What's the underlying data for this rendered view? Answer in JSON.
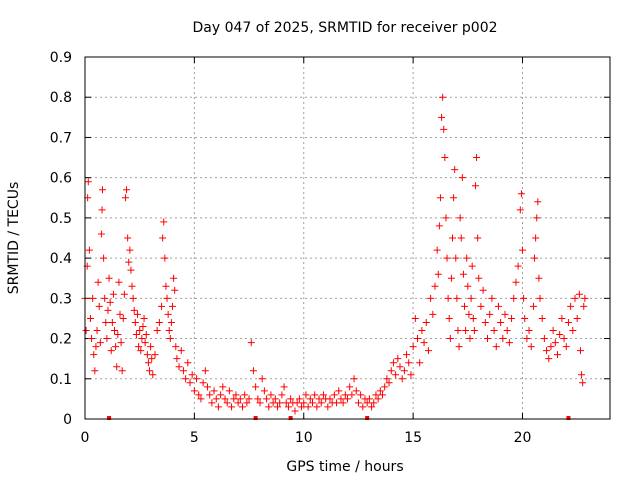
{
  "chart_data": {
    "type": "scatter",
    "title": "Day 047 of 2025, SRMTID for receiver p002",
    "xlabel": "GPS time / hours",
    "ylabel": "SRMTID / TECUs",
    "xlim": [
      0,
      24
    ],
    "ylim": [
      0,
      0.9
    ],
    "xticks": [
      0,
      5,
      10,
      15,
      20
    ],
    "xtick_labels": [
      "0",
      "5",
      "10",
      "15",
      "20"
    ],
    "yticks": [
      0,
      0.1,
      0.2,
      0.3,
      0.4,
      0.5,
      0.6,
      0.7,
      0.8,
      0.9
    ],
    "ytick_labels": [
      "0",
      "0.1",
      "0.2",
      "0.3",
      "0.4",
      "0.5",
      "0.6",
      "0.7",
      "0.8",
      "0.9"
    ],
    "grid": true,
    "marker": "plus",
    "color": "#ff0000",
    "series": [
      {
        "name": "SRMTID",
        "points": [
          [
            0.0,
            0.3
          ],
          [
            0.05,
            0.22
          ],
          [
            0.1,
            0.38
          ],
          [
            0.12,
            0.55
          ],
          [
            0.15,
            0.59
          ],
          [
            0.2,
            0.42
          ],
          [
            0.25,
            0.25
          ],
          [
            0.3,
            0.2
          ],
          [
            0.35,
            0.3
          ],
          [
            0.4,
            0.16
          ],
          [
            0.45,
            0.12
          ],
          [
            0.5,
            0.18
          ],
          [
            0.55,
            0.22
          ],
          [
            0.6,
            0.34
          ],
          [
            0.65,
            0.28
          ],
          [
            0.7,
            0.19
          ],
          [
            0.75,
            0.46
          ],
          [
            0.78,
            0.52
          ],
          [
            0.8,
            0.57
          ],
          [
            0.85,
            0.4
          ],
          [
            0.9,
            0.3
          ],
          [
            0.95,
            0.24
          ],
          [
            1.0,
            0.2
          ],
          [
            1.05,
            0.27
          ],
          [
            1.1,
            0.35
          ],
          [
            1.15,
            0.29
          ],
          [
            1.2,
            0.17
          ],
          [
            1.25,
            0.24
          ],
          [
            1.3,
            0.31
          ],
          [
            1.35,
            0.22
          ],
          [
            1.4,
            0.18
          ],
          [
            1.45,
            0.13
          ],
          [
            1.5,
            0.21
          ],
          [
            1.55,
            0.34
          ],
          [
            1.6,
            0.26
          ],
          [
            1.65,
            0.19
          ],
          [
            1.7,
            0.12
          ],
          [
            1.75,
            0.25
          ],
          [
            1.8,
            0.31
          ],
          [
            1.85,
            0.55
          ],
          [
            1.9,
            0.57
          ],
          [
            1.95,
            0.45
          ],
          [
            2.0,
            0.39
          ],
          [
            2.05,
            0.42
          ],
          [
            2.1,
            0.37
          ],
          [
            2.15,
            0.33
          ],
          [
            2.2,
            0.3
          ],
          [
            2.25,
            0.27
          ],
          [
            2.3,
            0.24
          ],
          [
            2.35,
            0.21
          ],
          [
            2.4,
            0.26
          ],
          [
            2.45,
            0.18
          ],
          [
            2.5,
            0.22
          ],
          [
            2.55,
            0.17
          ],
          [
            2.6,
            0.2
          ],
          [
            2.65,
            0.23
          ],
          [
            2.7,
            0.25
          ],
          [
            2.75,
            0.19
          ],
          [
            2.8,
            0.21
          ],
          [
            2.85,
            0.16
          ],
          [
            2.9,
            0.14
          ],
          [
            2.95,
            0.12
          ],
          [
            3.0,
            0.18
          ],
          [
            3.05,
            0.15
          ],
          [
            3.1,
            0.11
          ],
          [
            3.2,
            0.16
          ],
          [
            3.3,
            0.22
          ],
          [
            3.4,
            0.24
          ],
          [
            3.5,
            0.28
          ],
          [
            3.55,
            0.45
          ],
          [
            3.6,
            0.49
          ],
          [
            3.65,
            0.4
          ],
          [
            3.7,
            0.33
          ],
          [
            3.75,
            0.3
          ],
          [
            3.8,
            0.26
          ],
          [
            3.85,
            0.22
          ],
          [
            3.9,
            0.2
          ],
          [
            3.95,
            0.24
          ],
          [
            4.0,
            0.28
          ],
          [
            4.05,
            0.35
          ],
          [
            4.1,
            0.32
          ],
          [
            4.15,
            0.18
          ],
          [
            4.2,
            0.15
          ],
          [
            4.3,
            0.13
          ],
          [
            4.4,
            0.17
          ],
          [
            4.5,
            0.12
          ],
          [
            4.6,
            0.1
          ],
          [
            4.7,
            0.14
          ],
          [
            4.8,
            0.09
          ],
          [
            4.9,
            0.11
          ],
          [
            5.0,
            0.07
          ],
          [
            5.1,
            0.1
          ],
          [
            5.2,
            0.06
          ],
          [
            5.3,
            0.05
          ],
          [
            5.4,
            0.09
          ],
          [
            5.5,
            0.12
          ],
          [
            5.6,
            0.08
          ],
          [
            5.7,
            0.06
          ],
          [
            5.8,
            0.04
          ],
          [
            5.9,
            0.07
          ],
          [
            6.0,
            0.05
          ],
          [
            6.1,
            0.03
          ],
          [
            6.2,
            0.06
          ],
          [
            6.3,
            0.08
          ],
          [
            6.4,
            0.05
          ],
          [
            6.5,
            0.04
          ],
          [
            6.6,
            0.07
          ],
          [
            6.7,
            0.03
          ],
          [
            6.8,
            0.05
          ],
          [
            6.9,
            0.06
          ],
          [
            7.0,
            0.04
          ],
          [
            7.1,
            0.05
          ],
          [
            7.2,
            0.03
          ],
          [
            7.3,
            0.06
          ],
          [
            7.4,
            0.04
          ],
          [
            7.5,
            0.05
          ],
          [
            7.6,
            0.19
          ],
          [
            7.7,
            0.12
          ],
          [
            7.8,
            0.08
          ],
          [
            7.9,
            0.05
          ],
          [
            8.0,
            0.04
          ],
          [
            8.1,
            0.1
          ],
          [
            8.2,
            0.07
          ],
          [
            8.3,
            0.05
          ],
          [
            8.4,
            0.03
          ],
          [
            8.5,
            0.06
          ],
          [
            8.6,
            0.04
          ],
          [
            8.7,
            0.05
          ],
          [
            8.8,
            0.03
          ],
          [
            8.9,
            0.04
          ],
          [
            9.0,
            0.06
          ],
          [
            9.1,
            0.08
          ],
          [
            9.2,
            0.04
          ],
          [
            9.3,
            0.03
          ],
          [
            9.4,
            0.05
          ],
          [
            9.5,
            0.04
          ],
          [
            9.6,
            0.02
          ],
          [
            9.7,
            0.04
          ],
          [
            9.8,
            0.05
          ],
          [
            9.9,
            0.03
          ],
          [
            10.0,
            0.04
          ],
          [
            10.1,
            0.06
          ],
          [
            10.2,
            0.03
          ],
          [
            10.3,
            0.05
          ],
          [
            10.4,
            0.04
          ],
          [
            10.5,
            0.06
          ],
          [
            10.6,
            0.03
          ],
          [
            10.7,
            0.05
          ],
          [
            10.8,
            0.04
          ],
          [
            10.9,
            0.06
          ],
          [
            11.0,
            0.05
          ],
          [
            11.1,
            0.03
          ],
          [
            11.2,
            0.05
          ],
          [
            11.3,
            0.04
          ],
          [
            11.4,
            0.06
          ],
          [
            11.5,
            0.04
          ],
          [
            11.6,
            0.07
          ],
          [
            11.7,
            0.05
          ],
          [
            11.8,
            0.04
          ],
          [
            11.9,
            0.06
          ],
          [
            12.0,
            0.05
          ],
          [
            12.1,
            0.08
          ],
          [
            12.2,
            0.06
          ],
          [
            12.3,
            0.1
          ],
          [
            12.4,
            0.07
          ],
          [
            12.5,
            0.04
          ],
          [
            12.6,
            0.06
          ],
          [
            12.7,
            0.03
          ],
          [
            12.8,
            0.05
          ],
          [
            12.9,
            0.04
          ],
          [
            13.0,
            0.05
          ],
          [
            13.1,
            0.03
          ],
          [
            13.2,
            0.04
          ],
          [
            13.3,
            0.06
          ],
          [
            13.4,
            0.05
          ],
          [
            13.5,
            0.07
          ],
          [
            13.6,
            0.06
          ],
          [
            13.7,
            0.08
          ],
          [
            13.8,
            0.1
          ],
          [
            13.9,
            0.09
          ],
          [
            14.0,
            0.12
          ],
          [
            14.1,
            0.14
          ],
          [
            14.2,
            0.11
          ],
          [
            14.3,
            0.15
          ],
          [
            14.4,
            0.13
          ],
          [
            14.5,
            0.1
          ],
          [
            14.6,
            0.12
          ],
          [
            14.7,
            0.16
          ],
          [
            14.8,
            0.14
          ],
          [
            14.9,
            0.11
          ],
          [
            15.0,
            0.18
          ],
          [
            15.1,
            0.25
          ],
          [
            15.2,
            0.2
          ],
          [
            15.3,
            0.14
          ],
          [
            15.4,
            0.22
          ],
          [
            15.5,
            0.19
          ],
          [
            15.6,
            0.24
          ],
          [
            15.7,
            0.17
          ],
          [
            15.8,
            0.3
          ],
          [
            15.9,
            0.26
          ],
          [
            16.0,
            0.33
          ],
          [
            16.1,
            0.42
          ],
          [
            16.15,
            0.36
          ],
          [
            16.2,
            0.48
          ],
          [
            16.25,
            0.55
          ],
          [
            16.3,
            0.75
          ],
          [
            16.35,
            0.8
          ],
          [
            16.4,
            0.72
          ],
          [
            16.45,
            0.65
          ],
          [
            16.5,
            0.5
          ],
          [
            16.55,
            0.4
          ],
          [
            16.6,
            0.3
          ],
          [
            16.65,
            0.25
          ],
          [
            16.7,
            0.2
          ],
          [
            16.75,
            0.35
          ],
          [
            16.8,
            0.45
          ],
          [
            16.85,
            0.55
          ],
          [
            16.9,
            0.62
          ],
          [
            16.95,
            0.4
          ],
          [
            17.0,
            0.3
          ],
          [
            17.05,
            0.22
          ],
          [
            17.1,
            0.18
          ],
          [
            17.15,
            0.5
          ],
          [
            17.2,
            0.45
          ],
          [
            17.25,
            0.6
          ],
          [
            17.3,
            0.36
          ],
          [
            17.35,
            0.28
          ],
          [
            17.4,
            0.22
          ],
          [
            17.45,
            0.4
          ],
          [
            17.5,
            0.33
          ],
          [
            17.55,
            0.26
          ],
          [
            17.6,
            0.2
          ],
          [
            17.65,
            0.3
          ],
          [
            17.7,
            0.38
          ],
          [
            17.75,
            0.25
          ],
          [
            17.8,
            0.22
          ],
          [
            17.85,
            0.58
          ],
          [
            17.9,
            0.65
          ],
          [
            17.95,
            0.45
          ],
          [
            18.0,
            0.35
          ],
          [
            18.1,
            0.28
          ],
          [
            18.2,
            0.32
          ],
          [
            18.3,
            0.24
          ],
          [
            18.4,
            0.2
          ],
          [
            18.5,
            0.26
          ],
          [
            18.6,
            0.3
          ],
          [
            18.7,
            0.22
          ],
          [
            18.8,
            0.18
          ],
          [
            18.9,
            0.28
          ],
          [
            19.0,
            0.24
          ],
          [
            19.1,
            0.2
          ],
          [
            19.2,
            0.26
          ],
          [
            19.3,
            0.22
          ],
          [
            19.4,
            0.19
          ],
          [
            19.5,
            0.25
          ],
          [
            19.6,
            0.3
          ],
          [
            19.7,
            0.34
          ],
          [
            19.8,
            0.38
          ],
          [
            19.9,
            0.52
          ],
          [
            19.95,
            0.56
          ],
          [
            20.0,
            0.42
          ],
          [
            20.05,
            0.3
          ],
          [
            20.1,
            0.25
          ],
          [
            20.2,
            0.2
          ],
          [
            20.3,
            0.22
          ],
          [
            20.4,
            0.18
          ],
          [
            20.5,
            0.28
          ],
          [
            20.55,
            0.4
          ],
          [
            20.6,
            0.45
          ],
          [
            20.65,
            0.5
          ],
          [
            20.7,
            0.54
          ],
          [
            20.75,
            0.35
          ],
          [
            20.8,
            0.3
          ],
          [
            20.9,
            0.25
          ],
          [
            21.0,
            0.2
          ],
          [
            21.1,
            0.17
          ],
          [
            21.2,
            0.15
          ],
          [
            21.3,
            0.18
          ],
          [
            21.4,
            0.22
          ],
          [
            21.5,
            0.19
          ],
          [
            21.6,
            0.16
          ],
          [
            21.7,
            0.21
          ],
          [
            21.8,
            0.25
          ],
          [
            21.9,
            0.2
          ],
          [
            22.0,
            0.18
          ],
          [
            22.1,
            0.24
          ],
          [
            22.2,
            0.28
          ],
          [
            22.3,
            0.22
          ],
          [
            22.4,
            0.3
          ],
          [
            22.5,
            0.25
          ],
          [
            22.6,
            0.31
          ],
          [
            22.65,
            0.17
          ],
          [
            22.7,
            0.11
          ],
          [
            22.75,
            0.09
          ],
          [
            22.8,
            0.28
          ],
          [
            22.85,
            0.3
          ]
        ]
      }
    ],
    "missing_markers_x": [
      1.1,
      7.8,
      9.4,
      12.9,
      22.1
    ]
  }
}
